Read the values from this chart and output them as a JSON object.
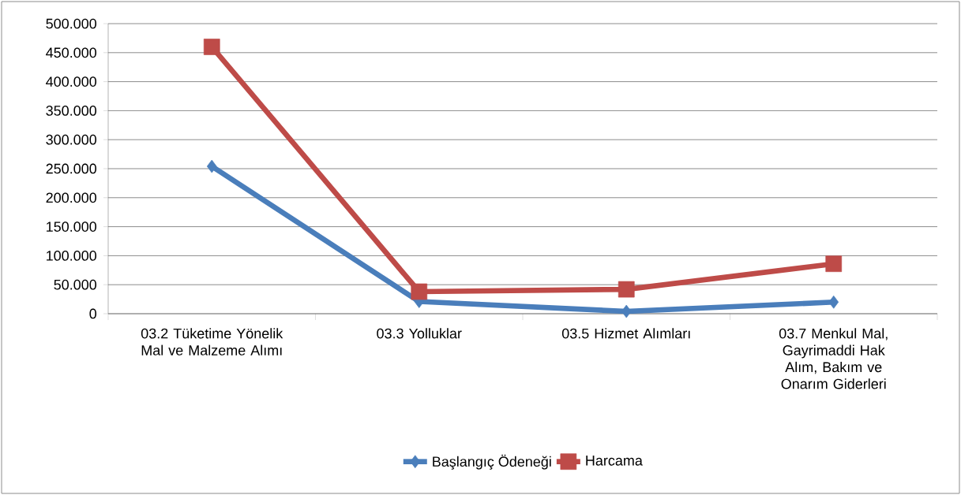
{
  "chart_data": {
    "type": "line",
    "categories": [
      "03.2 Tüketime Yönelik Mal ve Malzeme Alımı",
      "03.3 Yolluklar",
      "03.5 Hizmet Alımları",
      "03.7 Menkul Mal, Gayrimaddi Hak Alım, Bakım ve Onarım Giderleri"
    ],
    "series": [
      {
        "name": "Başlangıç Ödeneği",
        "color": "#4a7ebb",
        "marker": "diamond",
        "values": [
          254,
          21,
          4,
          20
        ]
      },
      {
        "name": "Harcama",
        "color": "#be4b48",
        "marker": "square",
        "values": [
          460,
          38,
          42,
          86
        ]
      }
    ],
    "ylim": [
      0,
      500
    ],
    "yticks": [
      {
        "value": 0,
        "label": "0"
      },
      {
        "value": 50,
        "label": "50.000"
      },
      {
        "value": 100,
        "label": "100.000"
      },
      {
        "value": 150,
        "label": "150.000"
      },
      {
        "value": 200,
        "label": "200.000"
      },
      {
        "value": 250,
        "label": "250.000"
      },
      {
        "value": 300,
        "label": "300.000"
      },
      {
        "value": 350,
        "label": "350.000"
      },
      {
        "value": 400,
        "label": "400.000"
      },
      {
        "value": 450,
        "label": "450.000"
      },
      {
        "value": 500,
        "label": "500.000"
      }
    ],
    "grid": "y",
    "legend": "bottom"
  }
}
